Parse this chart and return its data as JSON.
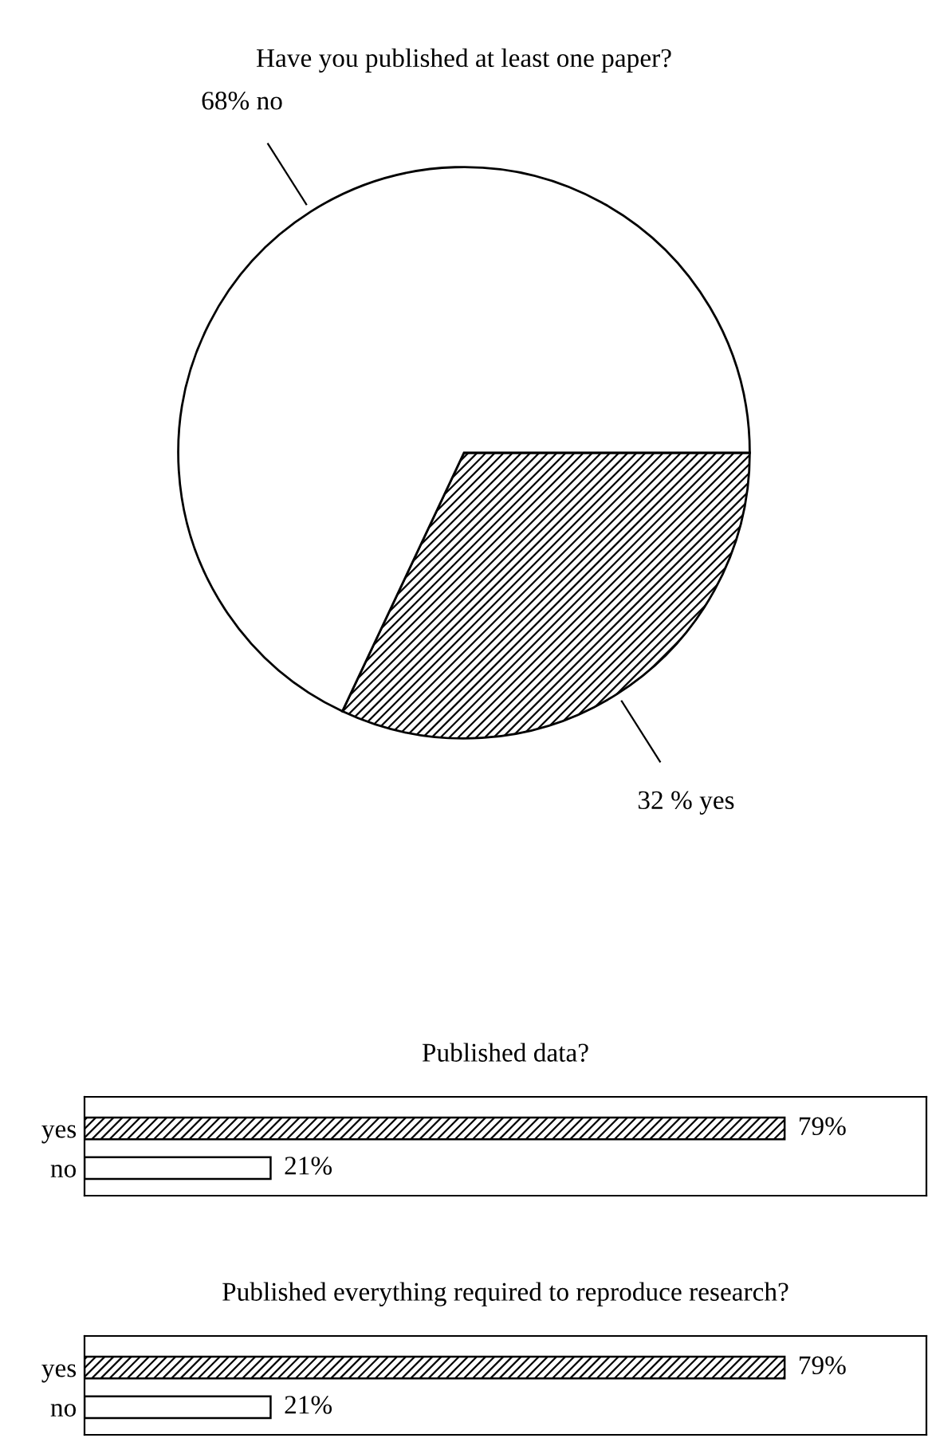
{
  "chart_data": [
    {
      "type": "pie",
      "title": "Have you published at least one paper?",
      "categories": [
        "32 % yes",
        "68% no"
      ],
      "values": [
        32,
        68
      ],
      "colors": [
        "#000000",
        "#ffffff"
      ],
      "legend": false
    },
    {
      "type": "bar",
      "orientation": "horizontal",
      "title": "Published data?",
      "categories": [
        "yes",
        "no"
      ],
      "values": [
        79,
        21
      ],
      "colors": [
        "#000000",
        "#ffffff"
      ],
      "value_labels": [
        "79%",
        "21%"
      ],
      "xlim": [
        0,
        95
      ],
      "tick_labels": "y",
      "legend": false
    },
    {
      "type": "bar",
      "orientation": "horizontal",
      "title": "Published everything required to reproduce research?",
      "categories": [
        "yes",
        "no"
      ],
      "values": [
        79,
        21
      ],
      "colors": [
        "#000000",
        "#ffffff"
      ],
      "value_labels": [
        "79%",
        "21%"
      ],
      "xlim": [
        0,
        95
      ],
      "tick_labels": "y",
      "legend": false
    }
  ]
}
